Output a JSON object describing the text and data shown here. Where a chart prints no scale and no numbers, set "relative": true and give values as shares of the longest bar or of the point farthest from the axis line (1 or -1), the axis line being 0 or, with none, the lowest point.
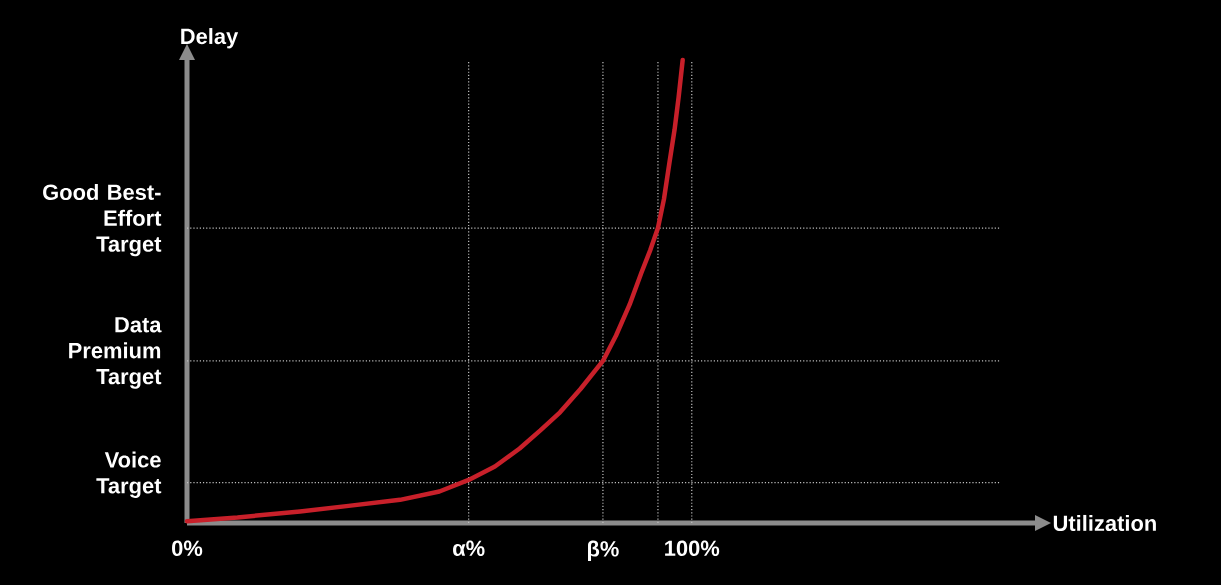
{
  "chart_data": {
    "type": "line",
    "relative": true,
    "xlabel": "Utilization",
    "ylabel": "Delay",
    "x": [
      0,
      10,
      22.4,
      32,
      42.2,
      50,
      55.8,
      61,
      65.9,
      70,
      73.9,
      78,
      82.4,
      85,
      87.7,
      90,
      91.8,
      93.3,
      94.5,
      95.6,
      96.6,
      97.4,
      98.2
    ],
    "values": [
      0.004,
      0.012,
      0.025,
      0.037,
      0.05,
      0.068,
      0.093,
      0.122,
      0.161,
      0.2,
      0.239,
      0.29,
      0.35,
      0.405,
      0.472,
      0.54,
      0.59,
      0.637,
      0.7,
      0.78,
      0.85,
      0.92,
      1
    ],
    "color": "#c8202a",
    "marker": "none",
    "line_style": "solid",
    "xlim": [
      0,
      168
    ],
    "xticks": [
      {
        "value": 0,
        "label": "0%"
      },
      {
        "value": 55.8,
        "label": "α%"
      },
      {
        "value": 82.4,
        "label": "β%"
      },
      {
        "value": 100,
        "label": "100%"
      }
    ],
    "ref_lines": [
      {
        "axis": "y",
        "value": 0.087,
        "label": "Voice Target",
        "color": "#bfbfbf",
        "line_style": "dotted"
      },
      {
        "axis": "y",
        "value": 0.35,
        "label": "Data Premium Target",
        "color": "#bfbfbf",
        "line_style": "dotted"
      },
      {
        "axis": "y",
        "value": 0.637,
        "label": "Good Best-Effort Target",
        "color": "#bfbfbf",
        "line_style": "dotted"
      },
      {
        "axis": "x",
        "value": 55.8,
        "label": null,
        "color": "#bfbfbf",
        "line_style": "dotted"
      },
      {
        "axis": "x",
        "value": 82.4,
        "label": null,
        "color": "#bfbfbf",
        "line_style": "dotted"
      },
      {
        "axis": "x",
        "value": 93.3,
        "label": null,
        "color": "#bfbfbf",
        "line_style": "dotted"
      },
      {
        "axis": "x",
        "value": 100,
        "label": null,
        "color": "#bfbfbf",
        "line_style": "dotted"
      }
    ]
  }
}
